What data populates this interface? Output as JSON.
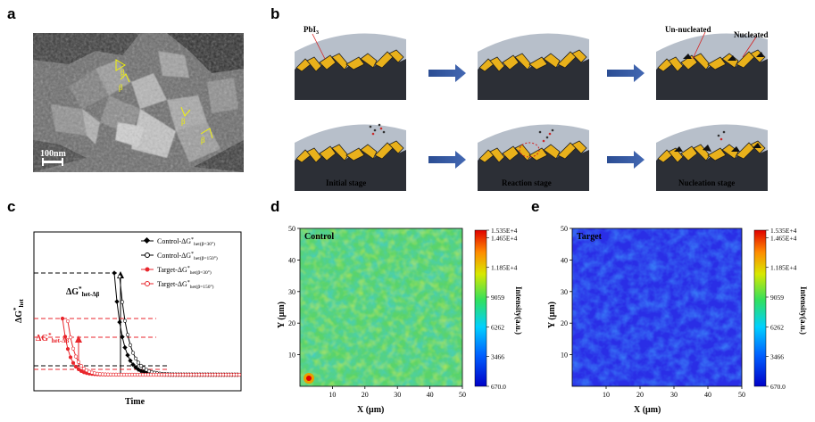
{
  "panels": {
    "a": {
      "label": "a",
      "scale_bar": "100nm",
      "angle_labels": [
        "β",
        "β",
        "β",
        "β"
      ]
    },
    "b": {
      "label": "b",
      "pbi3": "PbI",
      "pbi3_sub": "3",
      "un_nucleated": "Un-nucleated",
      "nucleated": "Nucleated",
      "stages": [
        "Initial stage",
        "Reaction stage",
        "Nucleation stage"
      ]
    },
    "c": {
      "label": "c",
      "ylabel_main": "ΔG",
      "ylabel_sup": "*",
      "ylabel_sub": "het",
      "xlabel": "Time",
      "annot_black_main": "ΔG",
      "annot_black_sup": "*",
      "annot_black_sub": "het-Δβ",
      "annot_red_main": "ΔG",
      "annot_red_sup": "*",
      "annot_red_sub": "het-Δβ",
      "legend": [
        {
          "name": "Control-ΔG",
          "sup": "*",
          "sub": "het(β=30°)"
        },
        {
          "name": "Control-ΔG",
          "sup": "*",
          "sub": "het(β=150°)"
        },
        {
          "name": "Target-ΔG",
          "sup": "*",
          "sub": "het(β=30°)"
        },
        {
          "name": "Target-ΔG",
          "sup": "*",
          "sub": "het(β=150°)"
        }
      ]
    },
    "d": {
      "label": "d",
      "inset": "Control",
      "xlabel": "X (μm)",
      "ylabel": "Y (μm)",
      "xticks": [
        "10",
        "20",
        "30",
        "40",
        "50"
      ],
      "yticks": [
        "10",
        "20",
        "30",
        "40",
        "50"
      ],
      "cbar_ticks": [
        "1.535E+4",
        "1.465E+4",
        "1.185E+4",
        "9059",
        "6262",
        "3466",
        "670.0"
      ],
      "cbar_label": "Intensity(a.u.)"
    },
    "e": {
      "label": "e",
      "inset": "Target",
      "xlabel": "X (μm)",
      "ylabel": "Y (μm)",
      "xticks": [
        "10",
        "20",
        "30",
        "40",
        "50"
      ],
      "yticks": [
        "10",
        "20",
        "30",
        "40",
        "50"
      ],
      "cbar_ticks": [
        "1.535E+4",
        "1.465E+4",
        "1.185E+4",
        "9059",
        "6262",
        "3466",
        "670.0"
      ],
      "cbar_label": "Intensity(a.u.)"
    }
  },
  "chart_data": [
    {
      "type": "line",
      "panel": "c",
      "xlabel": "Time",
      "ylabel": "ΔG*het",
      "series": [
        {
          "name": "Control-ΔG*het(β=30°)",
          "color": "#000000",
          "marker": "filled-diamond"
        },
        {
          "name": "Control-ΔG*het(β=150°)",
          "color": "#000000",
          "marker": "open-circle"
        },
        {
          "name": "Target-ΔG*het(β=30°)",
          "color": "#e8262c",
          "marker": "filled-star"
        },
        {
          "name": "Target-ΔG*het(β=150°)",
          "color": "#e8262c",
          "marker": "open-circle"
        }
      ],
      "annotations": [
        "ΔG*het-Δβ",
        "ΔG*het-Δβ"
      ]
    },
    {
      "type": "heatmap",
      "panel": "d",
      "title": "Control",
      "xlabel": "X (μm)",
      "ylabel": "Y (μm)",
      "xlim": [
        0,
        50
      ],
      "ylim": [
        0,
        50
      ],
      "colorbar_range": [
        670.0,
        15350
      ],
      "colorbar_ticks": [
        15350,
        14650,
        11850,
        9059,
        6262,
        3466,
        670.0
      ],
      "dominant_level": "green"
    },
    {
      "type": "heatmap",
      "panel": "e",
      "title": "Target",
      "xlabel": "X (μm)",
      "ylabel": "Y (μm)",
      "xlim": [
        0,
        50
      ],
      "ylim": [
        0,
        50
      ],
      "colorbar_range": [
        670.0,
        15350
      ],
      "colorbar_ticks": [
        15350,
        14650,
        11850,
        9059,
        6262,
        3466,
        670.0
      ],
      "dominant_level": "blue"
    }
  ]
}
